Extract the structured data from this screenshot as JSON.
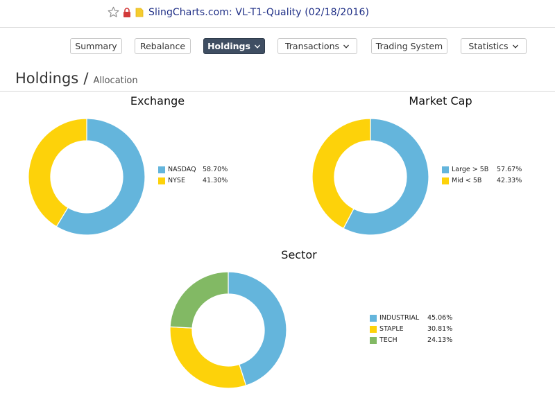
{
  "window": {
    "title": "SlingCharts.com: VL-T1-Quality (02/18/2016)"
  },
  "nav": {
    "items": [
      {
        "label": "Summary",
        "dropdown": false,
        "active": false
      },
      {
        "label": "Rebalance",
        "dropdown": false,
        "active": false
      },
      {
        "label": "Holdings",
        "dropdown": true,
        "active": true
      },
      {
        "label": "Transactions",
        "dropdown": true,
        "active": false
      },
      {
        "label": "Trading System",
        "dropdown": false,
        "active": false
      },
      {
        "label": "Statistics",
        "dropdown": true,
        "active": false
      }
    ]
  },
  "page": {
    "title": "Holdings",
    "separator": "/",
    "subtitle": "Allocation"
  },
  "colors": {
    "blue": "#64b5dc",
    "yellow": "#fdd20a",
    "green": "#82b964"
  },
  "chart_data": [
    {
      "type": "pie",
      "title": "Exchange",
      "categories": [
        "NASDAQ",
        "NYSE"
      ],
      "values": [
        58.7,
        41.3
      ],
      "value_labels": [
        "58.70%",
        "41.30%"
      ],
      "colors": [
        "#64b5dc",
        "#fdd20a"
      ],
      "legend": "right"
    },
    {
      "type": "pie",
      "title": "Market Cap",
      "categories": [
        "Large > 5B",
        "Mid < 5B"
      ],
      "values": [
        57.67,
        42.33
      ],
      "value_labels": [
        "57.67%",
        "42.33%"
      ],
      "colors": [
        "#64b5dc",
        "#fdd20a"
      ],
      "legend": "right"
    },
    {
      "type": "pie",
      "title": "Sector",
      "categories": [
        "INDUSTRIAL",
        "STAPLE",
        "TECH"
      ],
      "values": [
        45.06,
        30.81,
        24.13
      ],
      "value_labels": [
        "45.06%",
        "30.81%",
        "24.13%"
      ],
      "colors": [
        "#64b5dc",
        "#fdd20a",
        "#82b964"
      ],
      "legend": "right"
    }
  ]
}
